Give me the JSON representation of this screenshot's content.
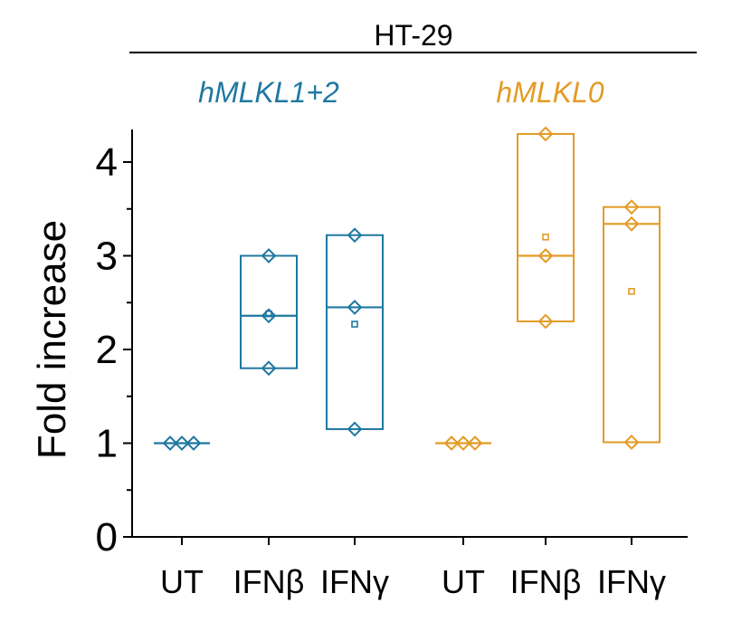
{
  "chart_data": {
    "type": "box",
    "title": "HT-29",
    "ylabel": "Fold increase",
    "xlabel": "",
    "ylim": [
      0,
      4.3
    ],
    "yticks": [
      0,
      1,
      2,
      3,
      4
    ],
    "grid": false,
    "legend": "none",
    "categories": [
      "UT",
      "IFNβ",
      "IFNγ",
      "UT",
      "IFNβ",
      "IFNγ"
    ],
    "groups": [
      {
        "name": "hMLKL1+2",
        "color": "#1f78a0",
        "boxes": [
          {
            "category": "UT",
            "points": [
              1.0,
              1.0,
              1.0
            ],
            "min": 1.0,
            "median": 1.0,
            "max": 1.0,
            "mean": 1.0
          },
          {
            "category": "IFNβ",
            "points": [
              3.0,
              2.36,
              1.8
            ],
            "min": 1.8,
            "median": 2.36,
            "max": 3.0,
            "mean": 2.38
          },
          {
            "category": "IFNγ",
            "points": [
              3.22,
              2.45,
              1.15
            ],
            "min": 1.15,
            "median": 2.45,
            "max": 3.22,
            "mean": 2.27
          }
        ]
      },
      {
        "name": "hMLKL0",
        "color": "#e39b25",
        "boxes": [
          {
            "category": "UT",
            "points": [
              1.0,
              1.0,
              1.0
            ],
            "min": 1.0,
            "median": 1.0,
            "max": 1.0,
            "mean": 1.0
          },
          {
            "category": "IFNβ",
            "points": [
              4.3,
              3.0,
              2.3
            ],
            "min": 2.3,
            "median": 3.0,
            "max": 4.3,
            "mean": 3.2
          },
          {
            "category": "IFNγ",
            "points": [
              3.52,
              3.34,
              1.01
            ],
            "min": 1.01,
            "median": 3.34,
            "max": 3.52,
            "mean": 2.62
          }
        ]
      }
    ]
  }
}
